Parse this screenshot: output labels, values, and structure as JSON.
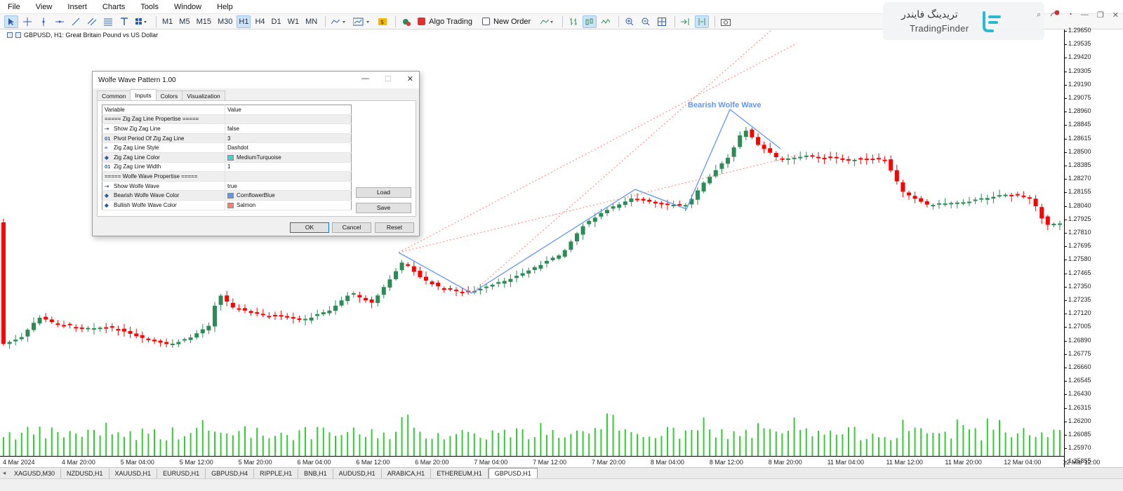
{
  "menu": [
    "File",
    "View",
    "Insert",
    "Charts",
    "Tools",
    "Window",
    "Help"
  ],
  "toolbar": {
    "timeframes": [
      "M1",
      "M5",
      "M15",
      "M30",
      "H1",
      "H4",
      "D1",
      "W1",
      "MN"
    ],
    "active_timeframe": "H1",
    "algo_trading": "Algo Trading",
    "new_order": "New Order"
  },
  "logo": {
    "fa": "تریدینگ فایندر",
    "en": "TradingFinder"
  },
  "chart": {
    "title": "GBPUSD, H1:  Great Britain Pound vs US Dollar",
    "annotation": "Bearish Wolfe Wave",
    "bull_color": "#2e8b57",
    "bear_color": "#ff0000",
    "volume_color": "#32cd32",
    "wave_color": "#6495ed",
    "dotted_color": "#fa8072",
    "y_ticks": [
      "1.29650",
      "1.29535",
      "1.29420",
      "1.29305",
      "1.29190",
      "1.29075",
      "1.28960",
      "1.28845",
      "1.28615",
      "1.28500",
      "1.28385",
      "1.28270",
      "1.28155",
      "1.28040",
      "1.27925",
      "1.27810",
      "1.27695",
      "1.27580",
      "1.27465",
      "1.27350",
      "1.27235",
      "1.27120",
      "1.27005",
      "1.26890",
      "1.26775",
      "1.26660",
      "1.26545",
      "1.26430",
      "1.26315",
      "1.26200",
      "1.26085",
      "1.25970",
      "1.25855"
    ],
    "x_ticks": [
      "4 Mar 2024",
      "4 Mar 20:00",
      "5 Mar 04:00",
      "5 Mar 12:00",
      "5 Mar 20:00",
      "6 Mar 04:00",
      "6 Mar 12:00",
      "6 Mar 20:00",
      "7 Mar 04:00",
      "7 Mar 12:00",
      "7 Mar 20:00",
      "8 Mar 04:00",
      "8 Mar 12:00",
      "8 Mar 20:00",
      "11 Mar 04:00",
      "11 Mar 12:00",
      "11 Mar 20:00",
      "12 Mar 04:00",
      "12 Mar 12:00"
    ]
  },
  "dialog": {
    "title": "Wolfe Wave Pattern 1.00",
    "tabs": [
      "Common",
      "Inputs",
      "Colors",
      "Visualization"
    ],
    "active_tab": "Inputs",
    "header": {
      "variable": "Variable",
      "value": "Value"
    },
    "params": [
      {
        "icon": "",
        "name": "===== Zig Zag Line Propertise =====",
        "value": "",
        "swatch": ""
      },
      {
        "icon": "bool-icon",
        "name": "Show Zig Zag Line",
        "value": "false",
        "swatch": ""
      },
      {
        "icon": "int-icon",
        "name": "Pivot Period Of Zig Zag Line",
        "value": "3",
        "swatch": ""
      },
      {
        "icon": "style-icon",
        "name": "Zig Zag Line Style",
        "value": "Dashdot",
        "swatch": ""
      },
      {
        "icon": "color-icon",
        "name": "Zig Zag Line Color",
        "value": "MediumTurquoise",
        "swatch": "#48d1cc"
      },
      {
        "icon": "int-icon",
        "name": "Zig Zag Line Width",
        "value": "1",
        "swatch": ""
      },
      {
        "icon": "",
        "name": "===== Wolfe Wave Propertise =====",
        "value": "",
        "swatch": ""
      },
      {
        "icon": "bool-icon",
        "name": "Show Wolfe Wave",
        "value": "true",
        "swatch": ""
      },
      {
        "icon": "color-icon",
        "name": "Bearish Wolfe Wave Color",
        "value": "CornflowerBlue",
        "swatch": "#6495ed"
      },
      {
        "icon": "color-icon",
        "name": "Bullish Wolfe Wave Color",
        "value": "Salmon",
        "swatch": "#fa8072"
      }
    ],
    "buttons": {
      "load": "Load",
      "save": "Save",
      "ok": "OK",
      "cancel": "Cancel",
      "reset": "Reset"
    }
  },
  "tabs": [
    "XAGUSD,M30",
    "NZDUSD,H1",
    "XAUUSD,H1",
    "EURUSD,H1",
    "GBPUSD,H4",
    "RIPPLE,H1",
    "BNB,H1",
    "AUDUSD,H1",
    "ARABICA,H1",
    "ETHEREUM,H1",
    "GBPUSD,H1"
  ],
  "active_tab": "GBPUSD,H1"
}
